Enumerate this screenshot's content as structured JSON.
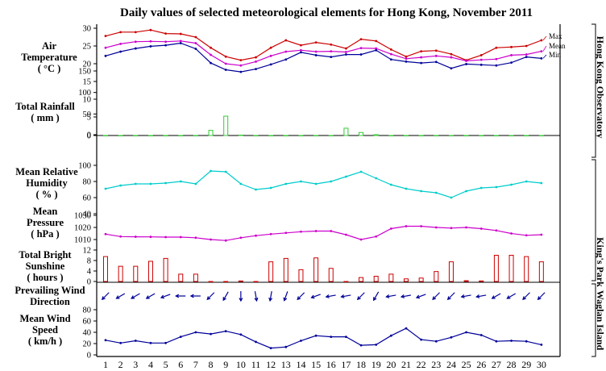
{
  "title": "Daily values of selected meteorological elements for Hong Kong, November 2011",
  "days": [
    1,
    2,
    3,
    4,
    5,
    6,
    7,
    8,
    9,
    10,
    11,
    12,
    13,
    14,
    15,
    16,
    17,
    18,
    19,
    20,
    21,
    22,
    23,
    24,
    25,
    26,
    27,
    28,
    29,
    30
  ],
  "stations": {
    "hko": "Hong Kong Observatory",
    "kp": "King's Park",
    "wi": "Waglan Island"
  },
  "chart_data": [
    {
      "type": "line",
      "title": "Air Temperature (°C)",
      "ylabel": "Air Temperature ( °C )",
      "ylim": [
        0,
        30
      ],
      "yticks": [
        0,
        5,
        10,
        15,
        20,
        25,
        30
      ],
      "series": [
        {
          "name": "Max",
          "color": "#cc0000",
          "values": [
            27.8,
            28.9,
            28.9,
            29.5,
            28.5,
            28.4,
            27.5,
            24.5,
            22,
            21,
            21.8,
            24.5,
            26.6,
            25.2,
            26,
            25.4,
            24.3,
            26.9,
            26.4,
            24,
            22,
            23.5,
            23.7,
            22.7,
            21,
            22.4,
            24.5,
            24.7,
            25,
            26.6
          ]
        },
        {
          "name": "Mean",
          "color": "#cc00cc",
          "values": [
            24.5,
            25.6,
            26.2,
            26.3,
            26.2,
            26.4,
            25.8,
            22.5,
            20,
            19.5,
            20.6,
            22.2,
            23.4,
            23.8,
            23.4,
            23.5,
            23.3,
            24.4,
            24.3,
            22.7,
            21.4,
            21.8,
            22.2,
            21.8,
            20.8,
            21.1,
            21.3,
            22.4,
            22.6,
            23.5
          ]
        },
        {
          "name": "Min",
          "color": "#000099",
          "values": [
            22.2,
            23.4,
            24.3,
            24.9,
            25.2,
            25.8,
            24.2,
            20.2,
            18.3,
            17.7,
            18.5,
            19.8,
            21.2,
            23.2,
            22.4,
            21.9,
            22.6,
            22.6,
            23.8,
            21.2,
            20.6,
            20.2,
            20.5,
            18.7,
            19.9,
            19.7,
            19.5,
            20.3,
            21.9,
            21.5
          ]
        }
      ]
    },
    {
      "type": "bar",
      "title": "Total Rainfall (mm)",
      "ylabel": "Total Rainfall ( mm )",
      "ylim": [
        0,
        150
      ],
      "yticks": [
        0,
        50,
        100,
        150
      ],
      "color": "#33cc33",
      "values": [
        0,
        0,
        0,
        0,
        0,
        0,
        0,
        12,
        45,
        1,
        0,
        0,
        0,
        0,
        0,
        0,
        17,
        7,
        2,
        0,
        0,
        0,
        0,
        0,
        0,
        0,
        0,
        0,
        0,
        0
      ]
    },
    {
      "type": "line",
      "title": "Mean Relative Humidity (%)",
      "ylabel": "Mean Relative Humidity ( % )",
      "ylim": [
        40,
        100
      ],
      "yticks": [
        40,
        60,
        80,
        100
      ],
      "color": "#00cccc",
      "values": [
        71,
        75,
        77,
        77,
        78,
        80,
        77,
        93,
        92,
        77,
        70,
        72,
        77,
        80,
        77,
        80,
        86,
        92,
        84,
        76,
        71,
        68,
        66,
        60,
        68,
        72,
        73,
        76,
        80,
        78
      ]
    },
    {
      "type": "line",
      "title": "Mean Pressure (hPa)",
      "ylabel": "Mean Pressure ( hPa )",
      "ylim": [
        1000,
        1030
      ],
      "yticks": [
        1010,
        1020,
        1030
      ],
      "color": "#cc00cc",
      "values": [
        1014.5,
        1012.5,
        1012.3,
        1012.2,
        1012,
        1012,
        1011.5,
        1010,
        1009.2,
        1011.5,
        1013.2,
        1014.5,
        1015.5,
        1016.5,
        1017,
        1017,
        1014,
        1010,
        1012.5,
        1019,
        1021,
        1021,
        1020,
        1019.5,
        1020,
        1019,
        1017.5,
        1015,
        1013.5,
        1014
      ]
    },
    {
      "type": "bar",
      "title": "Total Bright Sunshine (hours)",
      "ylabel": "Total Bright Sunshine ( hours )",
      "ylim": [
        0,
        12
      ],
      "yticks": [
        0,
        4,
        8,
        12
      ],
      "color": "#cc0000",
      "values": [
        9.5,
        5.8,
        5.8,
        7.7,
        8.8,
        2.8,
        2.8,
        0,
        0,
        0.2,
        0,
        7.5,
        8.8,
        4.5,
        9,
        5,
        0,
        1.5,
        2,
        2.8,
        1,
        1.3,
        3.8,
        7.5,
        0.3,
        0.2,
        10,
        10,
        9.5,
        7.5
      ]
    },
    {
      "type": "scatter",
      "title": "Prevailing Wind Direction",
      "ylabel": "Prevailing Wind Direction",
      "color": "#000099",
      "values": [
        45,
        60,
        60,
        60,
        70,
        90,
        90,
        45,
        30,
        0,
        350,
        10,
        20,
        45,
        70,
        80,
        80,
        45,
        30,
        80,
        80,
        70,
        45,
        45,
        80,
        80,
        60,
        60,
        45,
        45
      ]
    },
    {
      "type": "line",
      "title": "Mean Wind Speed (km/h)",
      "ylabel": "Mean Wind Speed ( km/h )",
      "ylim": [
        0,
        80
      ],
      "yticks": [
        0,
        20,
        40,
        60,
        80
      ],
      "color": "#000099",
      "values": [
        26,
        21,
        25,
        21,
        21,
        32,
        40,
        37,
        42,
        36,
        23,
        12,
        14,
        25,
        34,
        32,
        32,
        17,
        18,
        34,
        47,
        27,
        24,
        31,
        40,
        35,
        24,
        25,
        24,
        18
      ]
    }
  ]
}
